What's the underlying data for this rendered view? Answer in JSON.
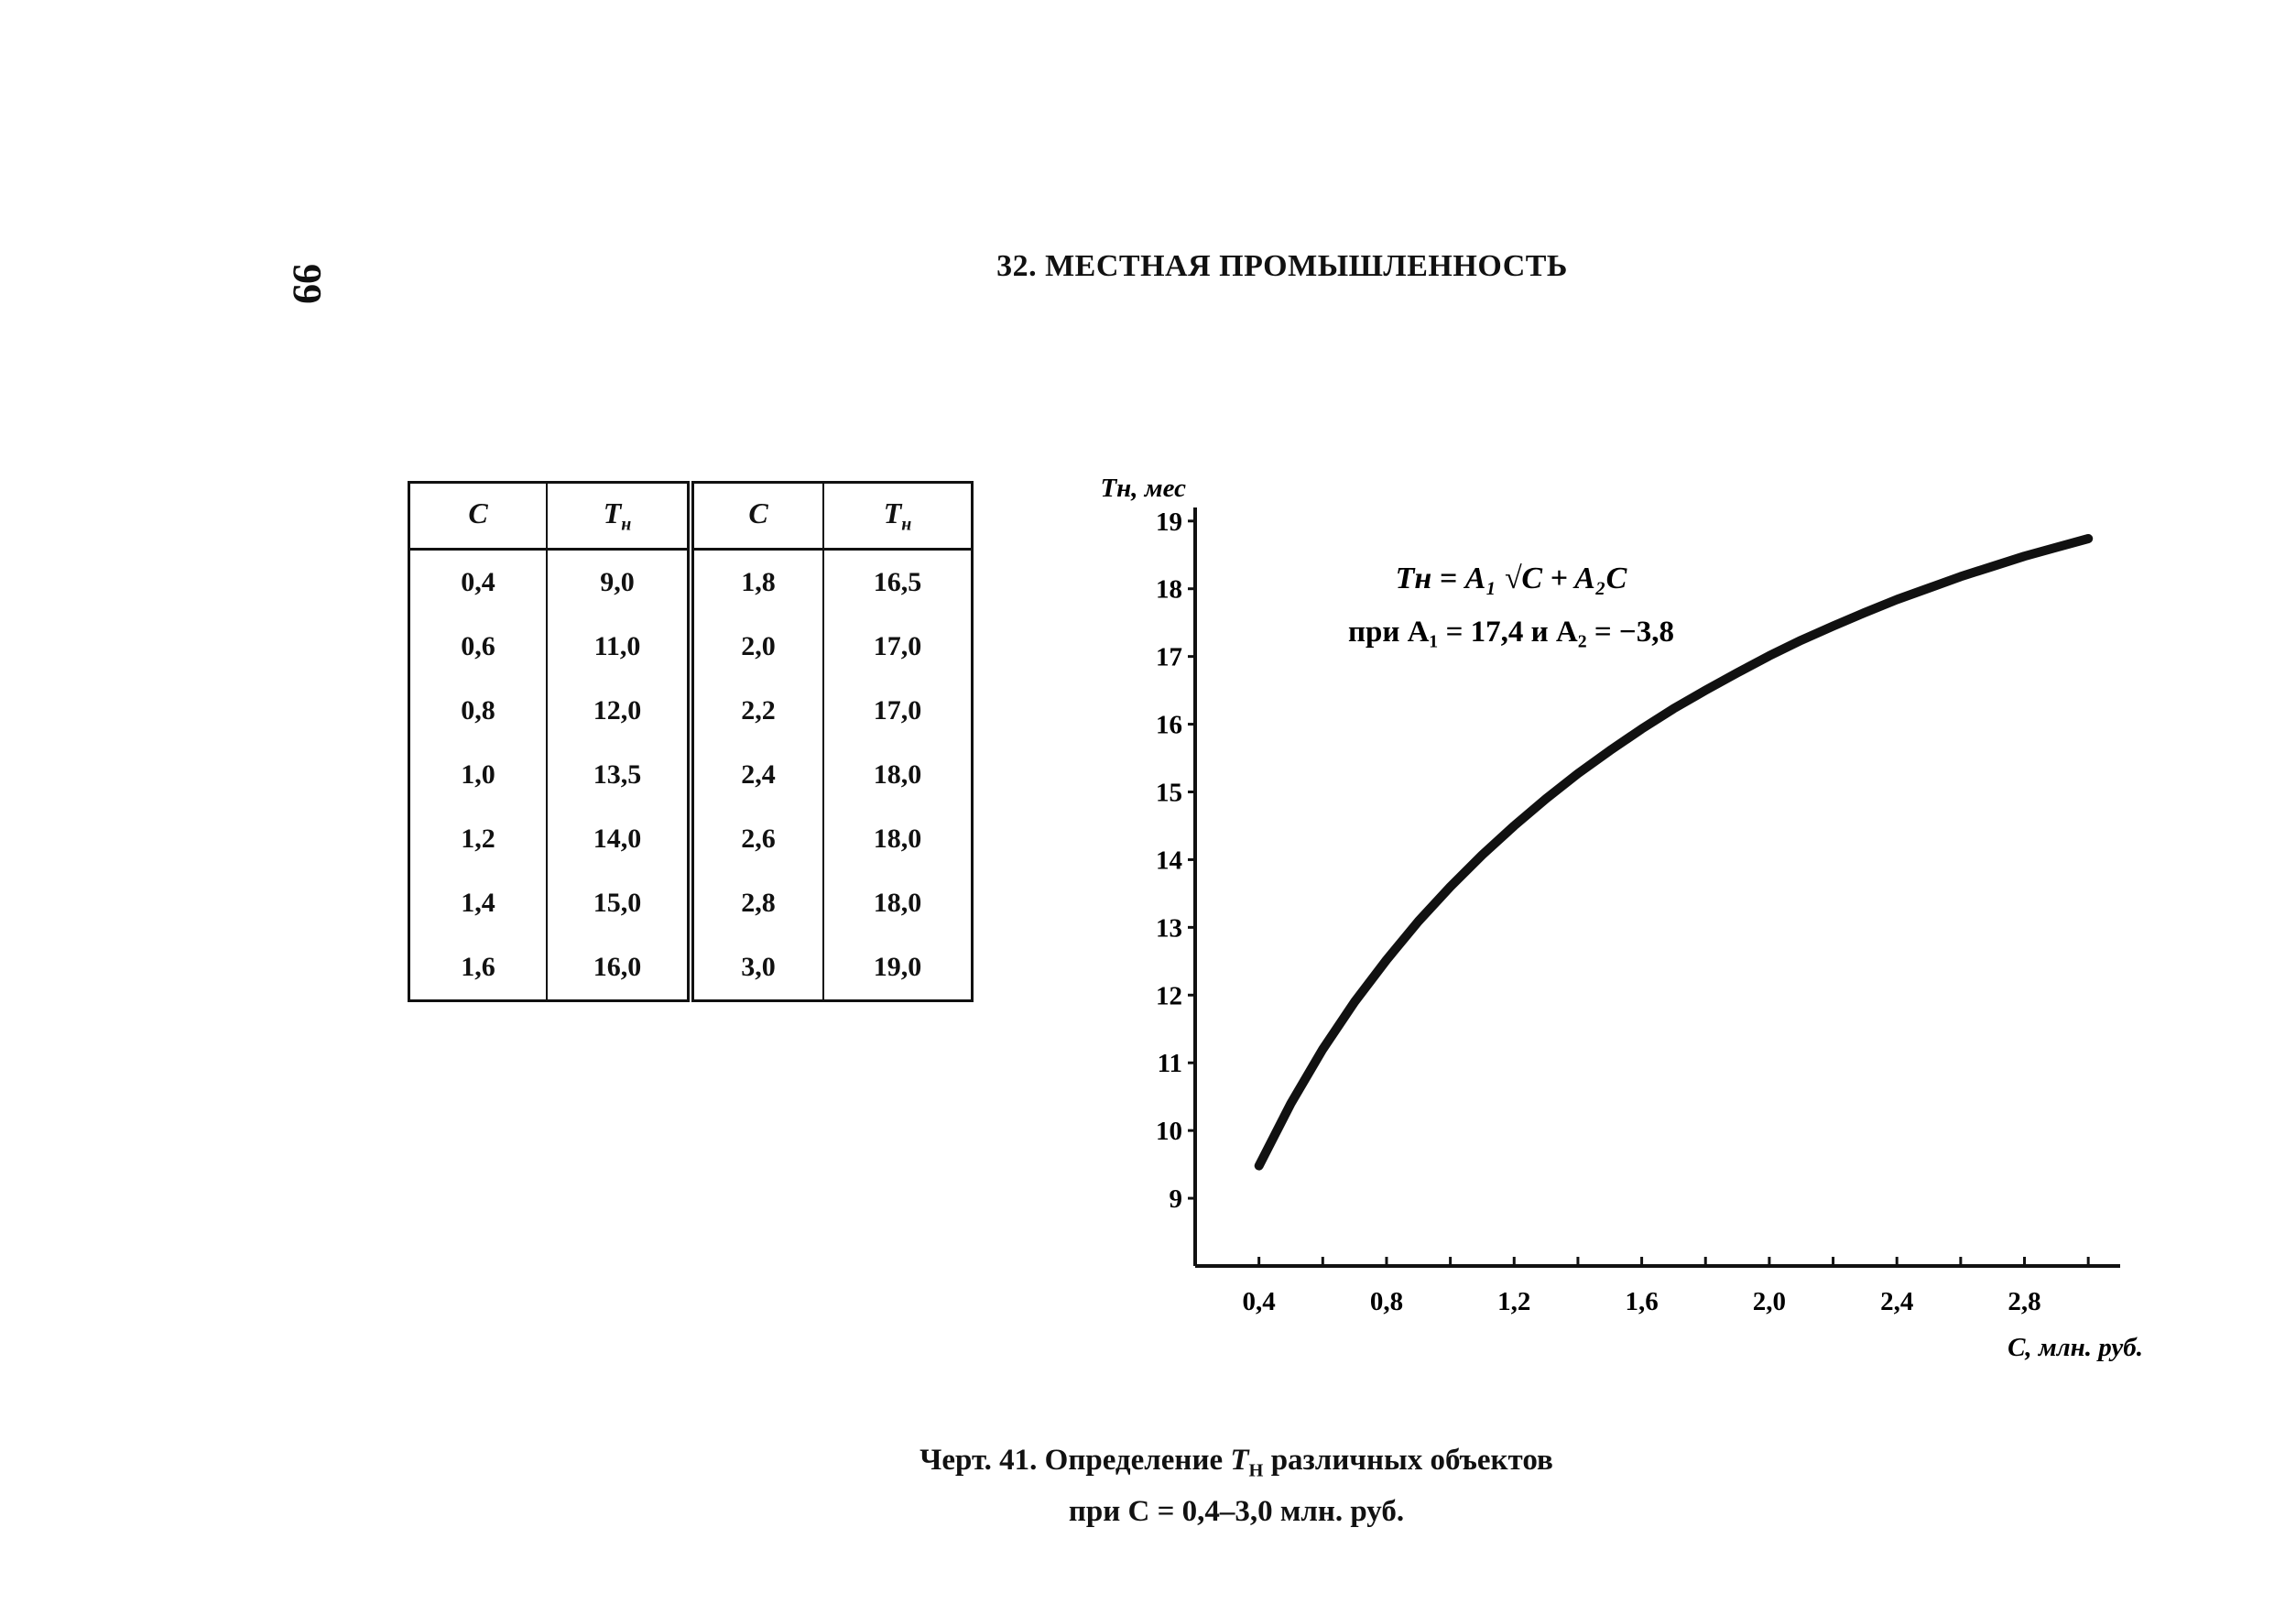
{
  "page": {
    "number": "99"
  },
  "header": {
    "title": "32. МЕСТНАЯ ПРОМЫШЛЕННОСТЬ"
  },
  "table": {
    "headers": [
      {
        "var": "C",
        "sub": ""
      },
      {
        "var": "T",
        "sub": "н"
      },
      {
        "var": "C",
        "sub": ""
      },
      {
        "var": "T",
        "sub": "н"
      }
    ],
    "rows": [
      [
        "0,4",
        "9,0",
        "1,8",
        "16,5"
      ],
      [
        "0,6",
        "11,0",
        "2,0",
        "17,0"
      ],
      [
        "0,8",
        "12,0",
        "2,2",
        "17,0"
      ],
      [
        "1,0",
        "13,5",
        "2,4",
        "18,0"
      ],
      [
        "1,2",
        "14,0",
        "2,6",
        "18,0"
      ],
      [
        "1,4",
        "15,0",
        "2,8",
        "18,0"
      ],
      [
        "1,6",
        "16,0",
        "3,0",
        "19,0"
      ]
    ]
  },
  "chart_data": {
    "type": "line",
    "title": "",
    "ylabel": "Tн, мес",
    "xlabel": "C, млн. руб.",
    "xlim": [
      0.2,
      3.1
    ],
    "ylim": [
      8.0,
      19.2
    ],
    "x_ticks": [
      0.4,
      0.6,
      0.8,
      1.0,
      1.2,
      1.4,
      1.6,
      1.8,
      2.0,
      2.2,
      2.4,
      2.6,
      2.8,
      3.0
    ],
    "x_tick_labels": [
      {
        "x": 0.4,
        "label": "0,4"
      },
      {
        "x": 0.8,
        "label": "0,8"
      },
      {
        "x": 1.2,
        "label": "1,2"
      },
      {
        "x": 1.6,
        "label": "1,6"
      },
      {
        "x": 2.0,
        "label": "2,0"
      },
      {
        "x": 2.4,
        "label": "2,4"
      },
      {
        "x": 2.8,
        "label": "2,8"
      }
    ],
    "y_ticks": [
      9,
      10,
      11,
      12,
      13,
      14,
      15,
      16,
      17,
      18,
      19
    ],
    "formula": {
      "line1": "Tн = A₁ √C + A₂C",
      "line2": "при A₁ = 17,4 и A₂ = −3,8"
    },
    "series": [
      {
        "x": [
          0.4,
          0.5,
          0.6,
          0.7,
          0.8,
          0.9,
          1.0,
          1.1,
          1.2,
          1.3,
          1.4,
          1.5,
          1.6,
          1.7,
          1.8,
          1.9,
          2.0,
          2.1,
          2.2,
          2.3,
          2.4,
          2.5,
          2.6,
          2.7,
          2.8,
          2.9,
          3.0
        ],
        "y": [
          9.48,
          10.4,
          11.2,
          11.9,
          12.52,
          13.09,
          13.6,
          14.07,
          14.5,
          14.9,
          15.27,
          15.61,
          15.93,
          16.23,
          16.5,
          16.76,
          17.01,
          17.24,
          17.45,
          17.65,
          17.84,
          18.01,
          18.18,
          18.33,
          18.48,
          18.61,
          18.74
        ]
      }
    ]
  },
  "caption": {
    "line1_prefix": "Черт. 41. Определение ",
    "line1_var": "T",
    "line1_sub": "Н",
    "line1_suffix": " различных объектов",
    "line2": "при C = 0,4–3,0 млн. руб."
  }
}
